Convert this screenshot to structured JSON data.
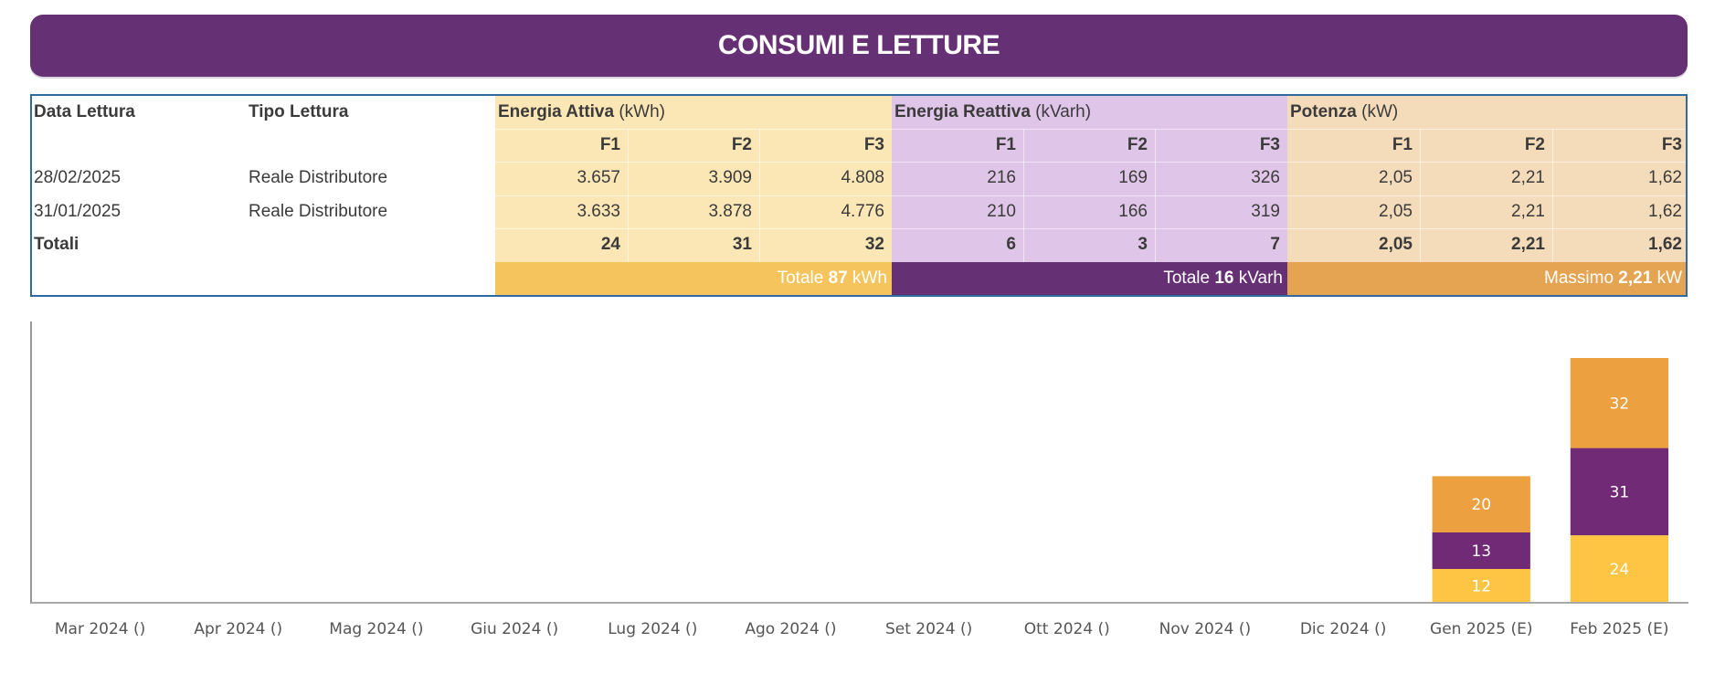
{
  "header": {
    "title": "CONSUMI E LETTURE"
  },
  "table": {
    "col_data_lettura": "Data Lettura",
    "col_tipo_lettura": "Tipo Lettura",
    "groups": [
      {
        "name": "Energia Attiva",
        "unit": "(kWh)",
        "color": "#fbe6b5"
      },
      {
        "name": "Energia Reattiva",
        "unit": "(kVarh)",
        "color": "#dfc5e8"
      },
      {
        "name": "Potenza",
        "unit": "(kW)",
        "color": "#f4dcbb"
      }
    ],
    "bands": [
      "F1",
      "F2",
      "F3"
    ],
    "rows": [
      {
        "date": "28/02/2025",
        "type": "Reale Distributore",
        "ea": [
          "3.657",
          "3.909",
          "4.808"
        ],
        "er": [
          "216",
          "169",
          "326"
        ],
        "po": [
          "2,05",
          "2,21",
          "1,62"
        ]
      },
      {
        "date": "31/01/2025",
        "type": "Reale Distributore",
        "ea": [
          "3.633",
          "3.878",
          "4.776"
        ],
        "er": [
          "210",
          "166",
          "319"
        ],
        "po": [
          "2,05",
          "2,21",
          "1,62"
        ]
      }
    ],
    "totals": {
      "label": "Totali",
      "ea": [
        "24",
        "31",
        "32"
      ],
      "er": [
        "6",
        "3",
        "7"
      ],
      "po": [
        "2,05",
        "2,21",
        "1,62"
      ]
    },
    "summary": {
      "ea": {
        "prefix": "Totale",
        "value": "87",
        "unit": "kWh"
      },
      "er": {
        "prefix": "Totale",
        "value": "16",
        "unit": "kVarh"
      },
      "po": {
        "prefix": "Massimo",
        "value": "2,21",
        "unit": "kW"
      }
    }
  },
  "colors": {
    "header": "#663174",
    "border": "#2f6aa0",
    "f1": "#fdc543",
    "f2": "#712b76",
    "f3": "#eca040"
  },
  "chart_data": {
    "type": "bar",
    "stacked": true,
    "title": "",
    "xlabel": "",
    "ylabel": "",
    "ylim": [
      0,
      100
    ],
    "grid": false,
    "legend": "none",
    "categories": [
      "Mar 2024 ()",
      "Apr 2024 ()",
      "Mag 2024 ()",
      "Giu 2024 ()",
      "Lug 2024 ()",
      "Ago 2024 ()",
      "Set 2024 ()",
      "Ott 2024 ()",
      "Nov 2024 ()",
      "Dic 2024 ()",
      "Gen 2025 (E)",
      "Feb 2025 (E)"
    ],
    "series": [
      {
        "name": "F1",
        "color": "#fdc543",
        "values": [
          0,
          0,
          0,
          0,
          0,
          0,
          0,
          0,
          0,
          0,
          12,
          24
        ]
      },
      {
        "name": "F2",
        "color": "#712b76",
        "values": [
          0,
          0,
          0,
          0,
          0,
          0,
          0,
          0,
          0,
          0,
          13,
          31
        ]
      },
      {
        "name": "F3",
        "color": "#eca040",
        "values": [
          0,
          0,
          0,
          0,
          0,
          0,
          0,
          0,
          0,
          0,
          20,
          32
        ]
      }
    ]
  }
}
